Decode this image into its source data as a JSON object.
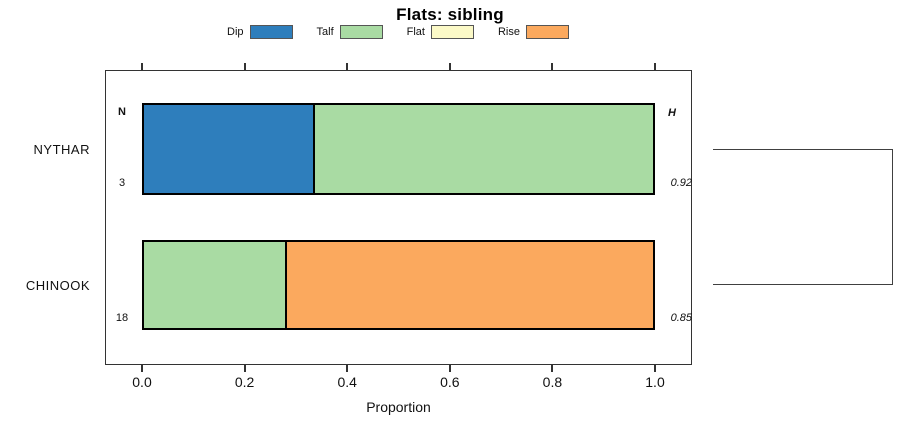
{
  "title": "Flats: sibling",
  "legend": {
    "items": [
      {
        "label": "Dip",
        "color": "#2e7ebc"
      },
      {
        "label": "Talf",
        "color": "#a9dba3"
      },
      {
        "label": "Flat",
        "color": "#fbf9c7"
      },
      {
        "label": "Rise",
        "color": "#fba95e"
      }
    ]
  },
  "chart_data": {
    "type": "bar",
    "variant": "horizontal-stacked-proportion",
    "title": "Flats: sibling",
    "xlabel": "Proportion",
    "xlim": [
      0,
      1
    ],
    "x_tick_labels": [
      "0.0",
      "0.2",
      "0.4",
      "0.6",
      "0.8",
      "1.0"
    ],
    "grid": false,
    "legend_position": "top",
    "categories": [
      "NYTHAR",
      "CHINOOK"
    ],
    "column_headers": {
      "n": "N",
      "h": "H"
    },
    "rows": [
      {
        "category": "NYTHAR",
        "n": "3",
        "h": "0.92",
        "segments": [
          {
            "name": "Dip",
            "value": 0.333
          },
          {
            "name": "Talf",
            "value": 0.667
          }
        ]
      },
      {
        "category": "CHINOOK",
        "n": "18",
        "h": "0.85",
        "segments": [
          {
            "name": "Talf",
            "value": 0.278
          },
          {
            "name": "Rise",
            "value": 0.722
          }
        ]
      }
    ],
    "annotations_note": "right-side bracket (dendrogram) joins NYTHAR and CHINOOK rows"
  },
  "colors": {
    "Dip": "#2e7ebc",
    "Talf": "#a9dba3",
    "Flat": "#fbf9c7",
    "Rise": "#fba95e",
    "bar_border": "#000000",
    "box_border": "#333333",
    "bracket": "#404040"
  }
}
